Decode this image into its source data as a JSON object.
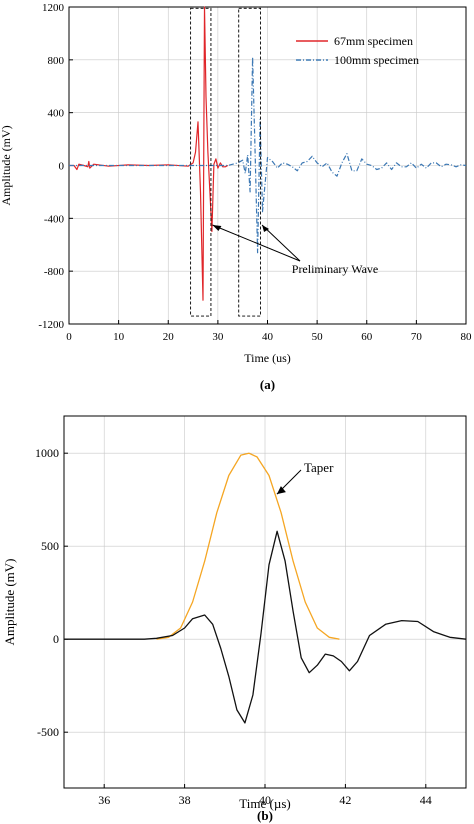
{
  "chart_data": [
    {
      "panel_label": "(a)",
      "type": "line",
      "xlabel": "Time (us)",
      "ylabel": "Amplitude (mV)",
      "xlim": [
        0,
        80
      ],
      "ylim": [
        -1200,
        1200
      ],
      "xticks": [
        0,
        10,
        20,
        30,
        40,
        50,
        60,
        70,
        80
      ],
      "yticks": [
        -1200,
        -800,
        -400,
        0,
        400,
        800,
        1200
      ],
      "grid": true,
      "legend": "top-right",
      "series": [
        {
          "name": "67mm specimen",
          "color": "#e0262a",
          "style": "solid",
          "x": [
            0,
            1,
            1.6,
            2,
            3,
            3.8,
            4,
            4.2,
            5,
            8,
            12,
            16,
            20,
            24,
            25,
            25.5,
            26,
            26.5,
            27,
            27.3,
            27.6,
            28,
            28.4,
            28.8,
            29.2,
            29.6,
            30,
            30.5,
            31,
            31.5,
            32
          ],
          "y": [
            0,
            0,
            -30,
            10,
            0,
            -10,
            30,
            -20,
            10,
            -5,
            5,
            0,
            5,
            -5,
            20,
            100,
            330,
            -200,
            -1020,
            1200,
            520,
            100,
            -200,
            -500,
            10,
            50,
            -20,
            20,
            -10,
            -10,
            0
          ]
        },
        {
          "name": "100mm specimen",
          "color": "#3c78b4",
          "style": "dashdot",
          "x": [
            0,
            10,
            20,
            25,
            28,
            30,
            32,
            33,
            34,
            35,
            35.5,
            36,
            36.5,
            37,
            37.5,
            38,
            38.5,
            39,
            40,
            41,
            42,
            43,
            44,
            45,
            46,
            47,
            48,
            49,
            50,
            51,
            52,
            53,
            54,
            55,
            56,
            57,
            58,
            59,
            60,
            61,
            62,
            63,
            64,
            65,
            66,
            67,
            68,
            69,
            70,
            71,
            72,
            73,
            74,
            75,
            76,
            77,
            78,
            79,
            80
          ],
          "y": [
            0,
            0,
            0,
            0,
            0,
            0,
            0,
            10,
            20,
            40,
            -60,
            80,
            -200,
            820,
            100,
            -660,
            350,
            -350,
            60,
            30,
            -20,
            20,
            10,
            -10,
            -40,
            20,
            30,
            70,
            20,
            -10,
            20,
            -50,
            -80,
            20,
            90,
            -40,
            -40,
            50,
            10,
            0,
            -30,
            -20,
            20,
            -30,
            20,
            -10,
            -10,
            20,
            -20,
            10,
            -20,
            20,
            20,
            -10,
            10,
            5,
            -10,
            5,
            0
          ]
        }
      ],
      "annotations": [
        {
          "text": "Preliminary Wave",
          "targets_x": [
            28.5,
            38.5
          ]
        }
      ]
    },
    {
      "panel_label": "(b)",
      "type": "line",
      "xlabel": "Time (µs)",
      "ylabel": "Amplitude (mV)",
      "xlim": [
        35,
        45
      ],
      "ylim": [
        -800,
        1200
      ],
      "xticks": [
        36,
        38,
        40,
        42,
        44
      ],
      "yticks": [
        -500,
        0,
        500,
        1000
      ],
      "grid": true,
      "series": [
        {
          "name": "Taper",
          "color": "#f5a623",
          "style": "solid",
          "x": [
            37.3,
            37.6,
            37.9,
            38.2,
            38.5,
            38.8,
            39.1,
            39.4,
            39.6,
            39.8,
            40.1,
            40.4,
            40.7,
            41,
            41.3,
            41.6,
            41.85
          ],
          "y": [
            0,
            10,
            60,
            200,
            420,
            680,
            880,
            990,
            1000,
            980,
            880,
            680,
            420,
            200,
            60,
            10,
            0
          ]
        },
        {
          "name": "",
          "color": "#111111",
          "style": "solid",
          "x": [
            35,
            36,
            37,
            37.3,
            37.7,
            38,
            38.2,
            38.5,
            38.7,
            38.9,
            39.1,
            39.3,
            39.5,
            39.7,
            39.9,
            40.1,
            40.3,
            40.5,
            40.7,
            40.9,
            41.1,
            41.3,
            41.5,
            41.7,
            41.9,
            42.1,
            42.3,
            42.6,
            43,
            43.4,
            43.8,
            44.2,
            44.6,
            45
          ],
          "y": [
            0,
            0,
            0,
            5,
            20,
            60,
            110,
            130,
            80,
            -50,
            -200,
            -380,
            -450,
            -300,
            30,
            400,
            580,
            420,
            150,
            -100,
            -180,
            -140,
            -80,
            -90,
            -120,
            -170,
            -120,
            20,
            80,
            100,
            95,
            40,
            10,
            0
          ]
        }
      ],
      "annotations": [
        {
          "text": "Taper",
          "target": [
            39.6,
            780
          ]
        }
      ]
    }
  ]
}
